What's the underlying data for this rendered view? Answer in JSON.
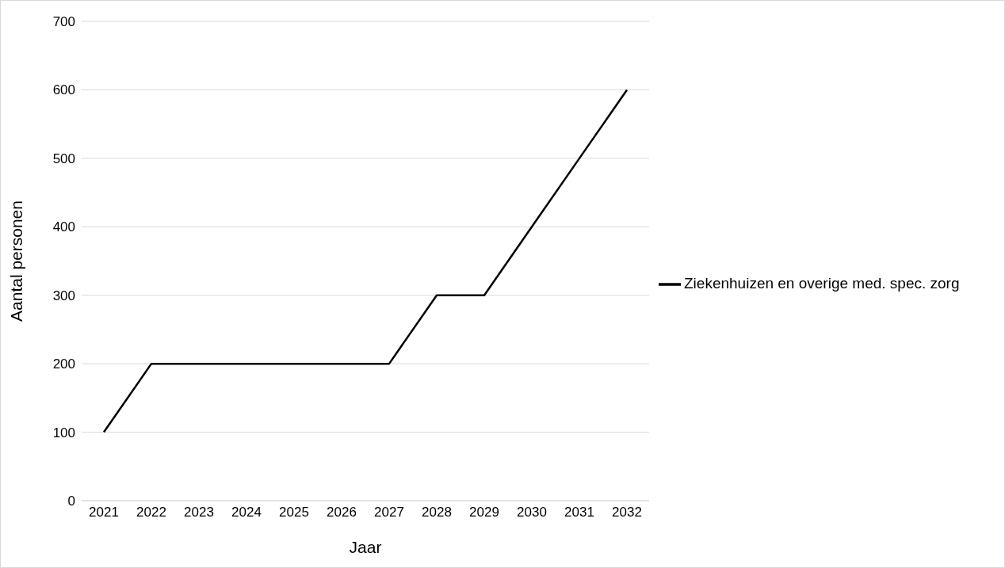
{
  "chart_data": {
    "type": "line",
    "xlabel": "Jaar",
    "ylabel": "Aantal personen",
    "categories": [
      "2021",
      "2022",
      "2023",
      "2024",
      "2025",
      "2026",
      "2027",
      "2028",
      "2029",
      "2030",
      "2031",
      "2032"
    ],
    "series": [
      {
        "name": "Ziekenhuizen en overige med. spec. zorg",
        "color": "#000000",
        "values": [
          100,
          200,
          200,
          200,
          200,
          200,
          200,
          300,
          300,
          400,
          500,
          600
        ]
      }
    ],
    "ylim": [
      0,
      700
    ],
    "yticks": [
      0,
      100,
      200,
      300,
      400,
      500,
      600,
      700
    ],
    "grid": "y",
    "legend": "right",
    "marker": "none",
    "line_style": "solid"
  }
}
